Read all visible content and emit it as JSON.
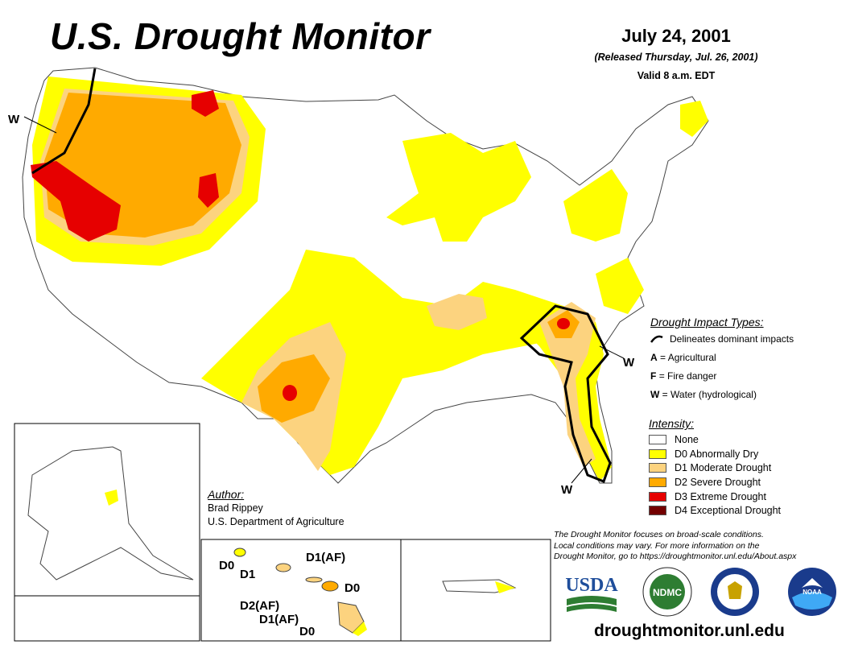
{
  "header": {
    "title": "U.S. Drought Monitor",
    "date": "July 24, 2001",
    "released": "(Released Thursday, Jul. 26, 2001)",
    "valid": "Valid 8 a.m. EDT"
  },
  "map_labels": {
    "west_w": "W",
    "southeast_w_upper": "W",
    "southeast_w_lower": "W"
  },
  "hawaii_labels": {
    "d0_top": "D0",
    "d1_left": "D1",
    "d1af_top": "D1(AF)",
    "d0_right": "D0",
    "d2af": "D2(AF)",
    "d1af_bottom": "D1(AF)",
    "d0_bottom": "D0"
  },
  "impact_types": {
    "heading": "Drought Impact Types:",
    "delineates": "Delineates dominant impacts",
    "items": [
      {
        "code": "A",
        "text": "= Agricultural"
      },
      {
        "code": "F",
        "text": "= Fire danger"
      },
      {
        "code": "W",
        "text": "= Water (hydrological)"
      }
    ]
  },
  "intensity": {
    "heading": "Intensity:",
    "levels": [
      {
        "label": "None",
        "color": "#ffffff"
      },
      {
        "label": "D0 Abnormally Dry",
        "color": "#ffff00"
      },
      {
        "label": "D1 Moderate Drought",
        "color": "#fcd37f"
      },
      {
        "label": "D2 Severe Drought",
        "color": "#ffaa00"
      },
      {
        "label": "D3 Extreme Drought",
        "color": "#e60000"
      },
      {
        "label": "D4 Exceptional Drought",
        "color": "#730000"
      }
    ]
  },
  "author": {
    "heading": "Author:",
    "name": "Brad Rippey",
    "org": "U.S. Department of Agriculture"
  },
  "note": {
    "line1": "The Drought Monitor focuses on broad-scale conditions.",
    "line2": "Local conditions may vary. For more information on the",
    "line3": "Drought Monitor, go to https://droughtmonitor.unl.edu/About.aspx"
  },
  "logos": {
    "usda": "USDA",
    "ndmc": "NDMC",
    "noaa": "NOAA"
  },
  "footer_url": "droughtmonitor.unl.edu"
}
